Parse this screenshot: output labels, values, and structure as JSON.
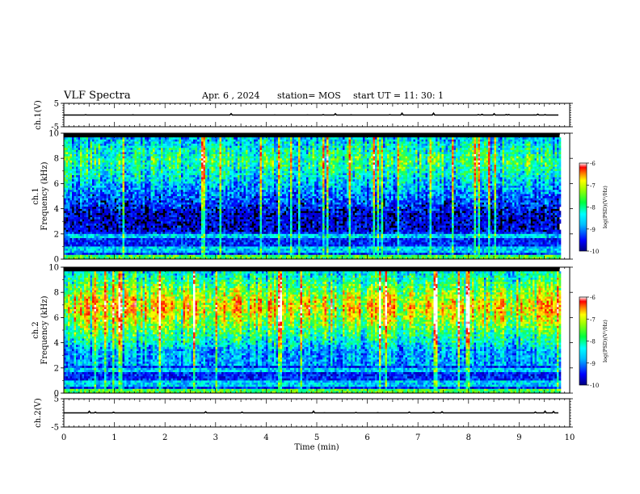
{
  "header": {
    "title": "VLF Spectra",
    "date": "Apr. 6  , 2024",
    "station": "station= MOS",
    "start_ut": "start  UT  =    11: 30: 1"
  },
  "colors": {
    "spectrogram_colormap": [
      "#000000",
      "#00008b",
      "#0000ff",
      "#0080ff",
      "#00ffff",
      "#00ff80",
      "#80ff00",
      "#ffff00",
      "#ff8000",
      "#ff0000",
      "#ffffff"
    ],
    "trace": "#000000"
  },
  "chart_data": [
    {
      "type": "line",
      "panel": "channel-1-voltage",
      "ylabel": "ch.1(V)",
      "ylim": [
        -5,
        5
      ],
      "yticks": [
        "5",
        "-5"
      ],
      "xlim": [
        0,
        10
      ],
      "level": 0
    },
    {
      "type": "heatmap",
      "panel": "channel-1-spectrogram",
      "ylabel_line1": "ch.1",
      "ylabel_line2": "Frequency (kHz)",
      "ylim": [
        0,
        10
      ],
      "yticks": [
        "0",
        "2",
        "4",
        "6",
        "8",
        "10"
      ],
      "xlim": [
        0,
        10
      ],
      "data_end": 9.8,
      "colorbar": {
        "label": "log(PSD)(V²/Hz)",
        "range": [
          -10,
          -6
        ],
        "ticks": [
          "-6",
          "-7",
          "-8",
          "-9",
          "-10"
        ]
      }
    },
    {
      "type": "heatmap",
      "panel": "channel-2-spectrogram",
      "ylabel_line1": "ch.2",
      "ylabel_line2": "Frequency (kHz)",
      "ylim": [
        0,
        10
      ],
      "yticks": [
        "0",
        "2",
        "4",
        "6",
        "8",
        "10"
      ],
      "xlim": [
        0,
        10
      ],
      "data_end": 9.8,
      "colorbar": {
        "label": "log(PSD)(V²/Hz)",
        "range": [
          -10,
          -6
        ],
        "ticks": [
          "-6",
          "-7",
          "-8",
          "-9",
          "-10"
        ]
      }
    },
    {
      "type": "line",
      "panel": "channel-2-voltage",
      "ylabel": "ch.2(V)",
      "ylim": [
        -5,
        5
      ],
      "yticks": [
        "5",
        "-5"
      ],
      "xlim": [
        0,
        10
      ],
      "xlabel": "Time  (min)",
      "xticks": [
        "0",
        "1",
        "2",
        "3",
        "4",
        "5",
        "6",
        "7",
        "8",
        "9",
        "10"
      ],
      "level": 0
    }
  ]
}
